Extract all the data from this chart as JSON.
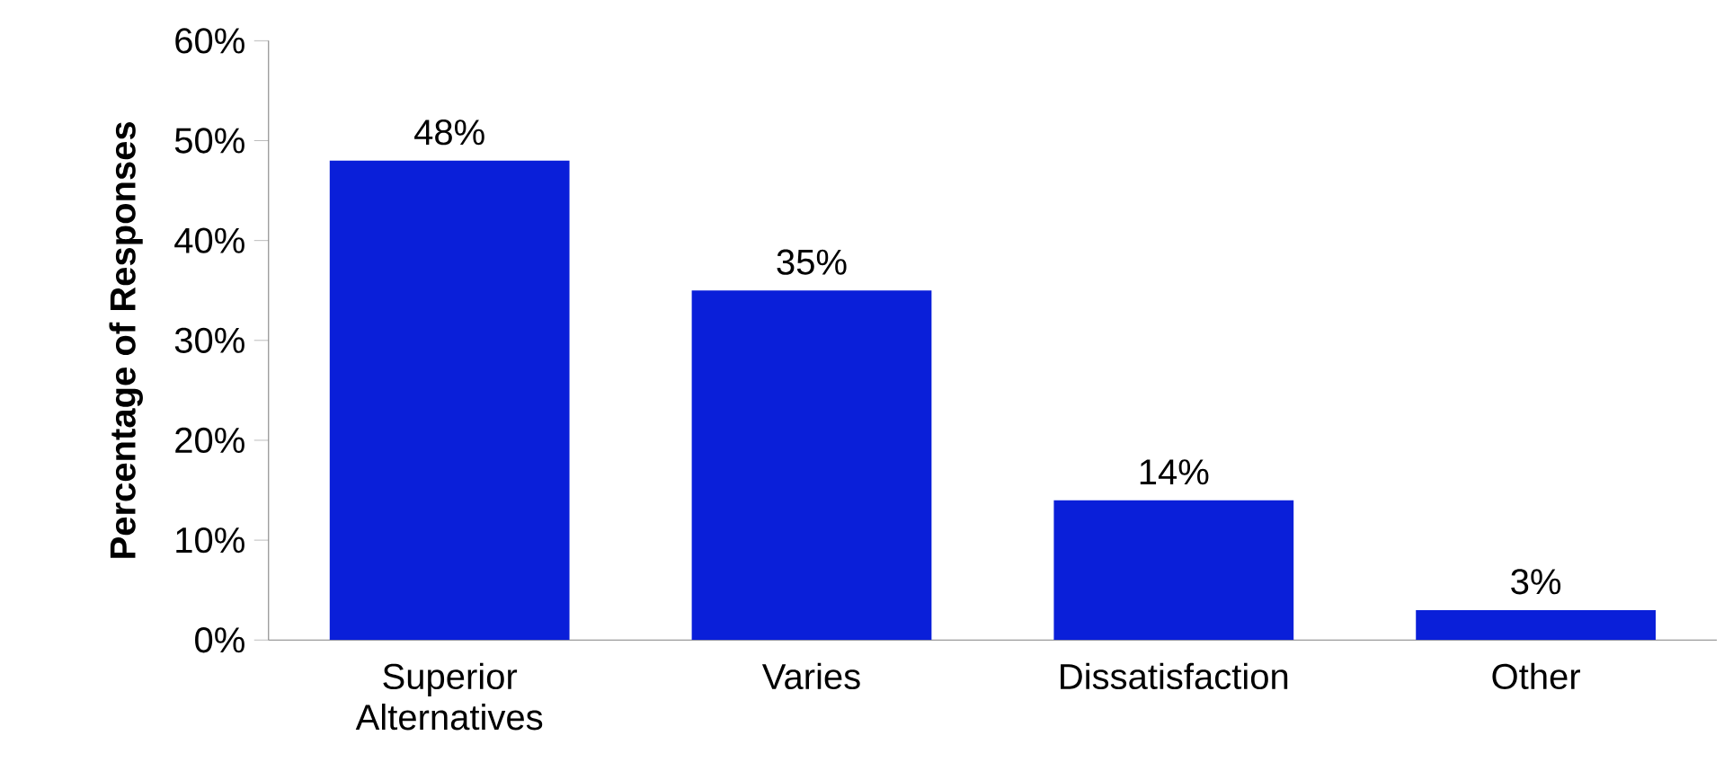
{
  "chart_data": {
    "type": "bar",
    "ylabel": "Percentage of Responses",
    "categories": [
      "Superior Alternatives",
      "Varies",
      "Dissatisfaction",
      "Other"
    ],
    "values": [
      48,
      35,
      14,
      3
    ],
    "value_labels": [
      "48%",
      "35%",
      "14%",
      "3%"
    ],
    "color": "#0a1fd9",
    "ylim": [
      0,
      60
    ],
    "yticks": [
      {
        "value": 0,
        "label": "0%"
      },
      {
        "value": 10,
        "label": "10%"
      },
      {
        "value": 20,
        "label": "20%"
      },
      {
        "value": 30,
        "label": "30%"
      },
      {
        "value": 40,
        "label": "40%"
      },
      {
        "value": 50,
        "label": "50%"
      },
      {
        "value": 60,
        "label": "60%"
      }
    ],
    "grid": false
  }
}
